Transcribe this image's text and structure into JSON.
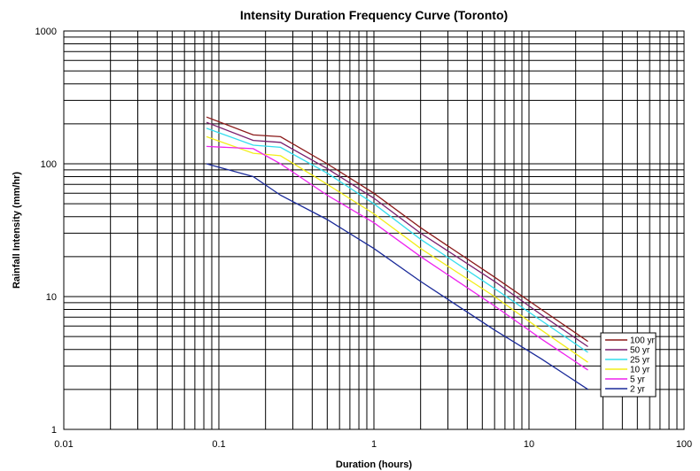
{
  "chart_data": {
    "type": "line",
    "title": "Intensity Duration Frequency Curve (Toronto)",
    "xlabel": "Duration (hours)",
    "ylabel": "Rainfall Intensity (mm/hr)",
    "xscale": "log",
    "yscale": "log",
    "xlim": [
      0.01,
      100
    ],
    "ylim": [
      1,
      1000
    ],
    "x_ticks": [
      "0.01",
      "0.1",
      "1",
      "10",
      "100"
    ],
    "y_ticks": [
      "1",
      "10",
      "100",
      "1000"
    ],
    "grid": true,
    "legend_position": "bottom-right",
    "series": [
      {
        "name": "100 yr",
        "color": "#8b1a1a",
        "points": [
          [
            0.0833,
            225
          ],
          [
            0.1667,
            165
          ],
          [
            0.25,
            160
          ],
          [
            0.5,
            100
          ],
          [
            1,
            60
          ],
          [
            2,
            33
          ],
          [
            6,
            14
          ],
          [
            12,
            8
          ],
          [
            24,
            4.6
          ]
        ]
      },
      {
        "name": "50 yr",
        "color": "#7a1f6e",
        "points": [
          [
            0.0833,
            205
          ],
          [
            0.1667,
            150
          ],
          [
            0.25,
            145
          ],
          [
            0.5,
            92
          ],
          [
            1,
            55
          ],
          [
            2,
            30
          ],
          [
            6,
            13
          ],
          [
            12,
            7.3
          ],
          [
            24,
            4.2
          ]
        ]
      },
      {
        "name": "25 yr",
        "color": "#33ddee",
        "points": [
          [
            0.0833,
            185
          ],
          [
            0.1667,
            138
          ],
          [
            0.25,
            133
          ],
          [
            0.5,
            85
          ],
          [
            1,
            50
          ],
          [
            2,
            27
          ],
          [
            6,
            11.5
          ],
          [
            12,
            6.6
          ],
          [
            24,
            3.8
          ]
        ]
      },
      {
        "name": "10 yr",
        "color": "#f2ee1a",
        "points": [
          [
            0.0833,
            160
          ],
          [
            0.1667,
            120
          ],
          [
            0.25,
            115
          ],
          [
            0.5,
            70
          ],
          [
            1,
            42
          ],
          [
            2,
            23
          ],
          [
            6,
            10
          ],
          [
            12,
            5.6
          ],
          [
            24,
            3.2
          ]
        ]
      },
      {
        "name": "5 yr",
        "color": "#ee22ee",
        "points": [
          [
            0.0833,
            135
          ],
          [
            0.1667,
            130
          ],
          [
            0.25,
            100
          ],
          [
            0.5,
            58
          ],
          [
            1,
            36
          ],
          [
            2,
            20
          ],
          [
            6,
            8.5
          ],
          [
            12,
            4.8
          ],
          [
            24,
            2.8
          ]
        ]
      },
      {
        "name": "2 yr",
        "color": "#1a2a99",
        "points": [
          [
            0.0833,
            100
          ],
          [
            0.1667,
            80
          ],
          [
            0.25,
            58
          ],
          [
            0.5,
            38
          ],
          [
            1,
            23
          ],
          [
            2,
            13
          ],
          [
            6,
            5.6
          ],
          [
            12,
            3.4
          ],
          [
            24,
            2.0
          ]
        ]
      }
    ]
  }
}
